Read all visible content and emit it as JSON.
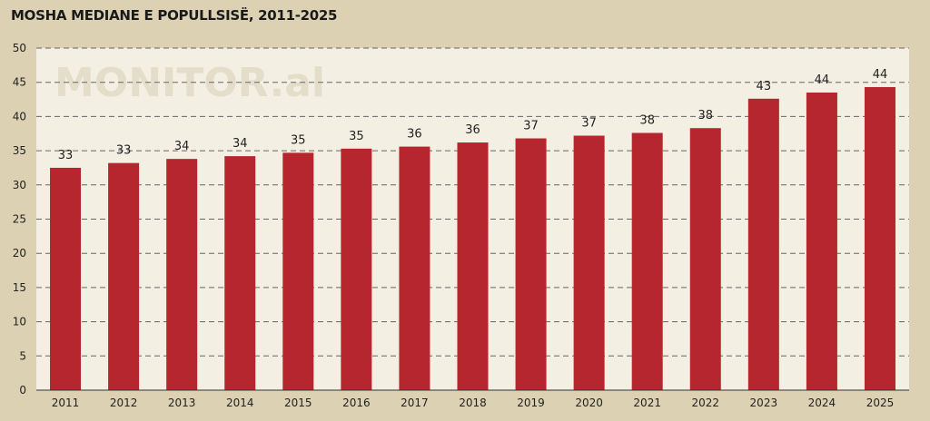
{
  "title": "MOSHA MEDIANE E POPULLSISË, 2011-2025",
  "watermark": "MONITOR.al",
  "colors": {
    "page_background": "#dcd1b3",
    "plot_background": "#f3efe3",
    "bar": "#b5262e",
    "grid": "#666666"
  },
  "chart_data": {
    "type": "bar",
    "title": "MOSHA MEDIANE E POPULLSISË, 2011-2025",
    "xlabel": "",
    "ylabel": "",
    "ylim": [
      0,
      50
    ],
    "yticks": [
      0,
      5,
      10,
      15,
      20,
      25,
      30,
      35,
      40,
      45,
      50
    ],
    "grid": "horizontal dashed",
    "categories": [
      "2011",
      "2012",
      "2013",
      "2014",
      "2015",
      "2016",
      "2017",
      "2018",
      "2019",
      "2020",
      "2021",
      "2022",
      "2023",
      "2024",
      "2025"
    ],
    "values": [
      32.5,
      33.2,
      33.8,
      34.2,
      34.7,
      35.3,
      35.6,
      36.2,
      36.8,
      37.2,
      37.6,
      38.3,
      42.6,
      43.5,
      44.3
    ],
    "data_labels": [
      "33",
      "33",
      "34",
      "34",
      "35",
      "35",
      "36",
      "36",
      "37",
      "37",
      "38",
      "38",
      "43",
      "44",
      "44"
    ]
  }
}
